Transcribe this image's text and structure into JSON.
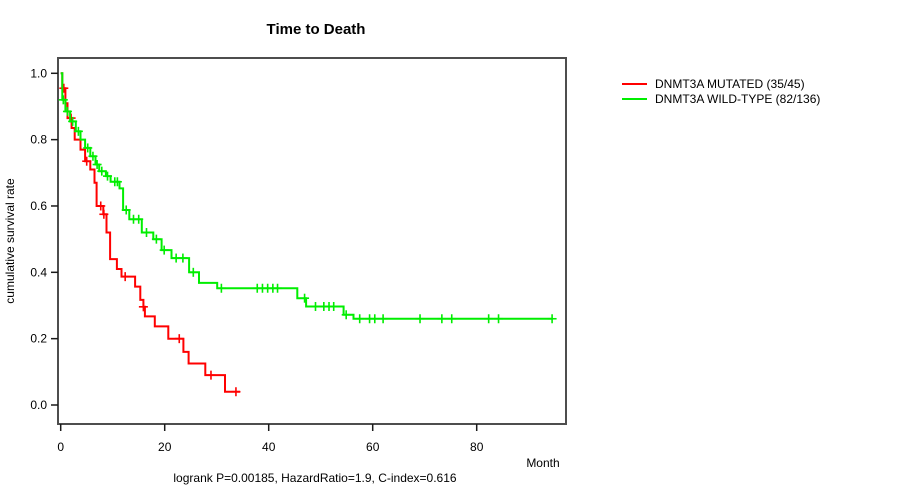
{
  "title": "Time to Death",
  "footer": "logrank P=0.00185, HazardRatio=1.9, C-index=0.616",
  "axes": {
    "x": {
      "label": "Month",
      "ticks": [
        0,
        20,
        40,
        60,
        80
      ],
      "range": [
        0,
        97
      ]
    },
    "y": {
      "label": "cumulative survival rate",
      "ticks": [
        "0.0",
        "0.2",
        "0.4",
        "0.6",
        "0.8",
        "1.0"
      ],
      "range": [
        0,
        1
      ]
    }
  },
  "legend": {
    "items": [
      {
        "label": "DNMT3A MUTATED (35/45)",
        "color": "#ff0000"
      },
      {
        "label": "DNMT3A WILD-TYPE (82/136)",
        "color": "#00ee00"
      }
    ]
  },
  "chart_data": {
    "type": "line",
    "subtype": "kaplan-meier-step-curve",
    "title": "Time to Death",
    "xlabel": "Month",
    "ylabel": "cumulative survival rate",
    "xlim": [
      0,
      97
    ],
    "ylim": [
      0,
      1.0
    ],
    "grid": false,
    "legend_position": "right-outside",
    "annotation": "logrank P=0.00185, HazardRatio=1.9, C-index=0.616",
    "series": [
      {
        "name": "DNMT3A MUTATED (35/45)",
        "color": "#ff0000",
        "end": 34.5,
        "steps": [
          [
            0,
            1.0
          ],
          [
            0.3,
            0.955
          ],
          [
            0.9,
            0.91
          ],
          [
            1.3,
            0.865
          ],
          [
            2.1,
            0.835
          ],
          [
            2.7,
            0.8
          ],
          [
            3.8,
            0.77
          ],
          [
            4.7,
            0.735
          ],
          [
            5.7,
            0.71
          ],
          [
            6.5,
            0.67
          ],
          [
            6.9,
            0.6
          ],
          [
            8.2,
            0.575
          ],
          [
            8.8,
            0.52
          ],
          [
            9.5,
            0.44
          ],
          [
            10.8,
            0.41
          ],
          [
            11.7,
            0.387
          ],
          [
            14.3,
            0.357
          ],
          [
            15.3,
            0.317
          ],
          [
            15.9,
            0.296
          ],
          [
            16.2,
            0.267
          ],
          [
            18.1,
            0.237
          ],
          [
            20.7,
            0.2
          ],
          [
            23.6,
            0.16
          ],
          [
            24.6,
            0.125
          ],
          [
            27.8,
            0.09
          ],
          [
            31.6,
            0.04
          ]
        ],
        "censors": [
          [
            0.6,
            0.955
          ],
          [
            2.0,
            0.865
          ],
          [
            5.0,
            0.735
          ],
          [
            7.7,
            0.6
          ],
          [
            8.3,
            0.575
          ],
          [
            12.4,
            0.387
          ],
          [
            15.9,
            0.296
          ],
          [
            22.8,
            0.2
          ],
          [
            28.9,
            0.09
          ],
          [
            33.7,
            0.04
          ]
        ]
      },
      {
        "name": "DNMT3A WILD-TYPE (82/136)",
        "color": "#00ee00",
        "end": 94.5,
        "steps": [
          [
            0,
            1.0
          ],
          [
            0.3,
            0.92
          ],
          [
            0.9,
            0.885
          ],
          [
            1.8,
            0.855
          ],
          [
            2.9,
            0.825
          ],
          [
            3.8,
            0.8
          ],
          [
            4.7,
            0.775
          ],
          [
            5.7,
            0.75
          ],
          [
            6.7,
            0.725
          ],
          [
            7.4,
            0.705
          ],
          [
            8.7,
            0.69
          ],
          [
            9.6,
            0.673
          ],
          [
            11.3,
            0.653
          ],
          [
            12.0,
            0.588
          ],
          [
            13.2,
            0.56
          ],
          [
            15.6,
            0.52
          ],
          [
            17.8,
            0.5
          ],
          [
            19.4,
            0.467
          ],
          [
            21.3,
            0.443
          ],
          [
            24.7,
            0.4
          ],
          [
            26.6,
            0.368
          ],
          [
            30.1,
            0.352
          ],
          [
            45.5,
            0.322
          ],
          [
            47.2,
            0.297
          ],
          [
            54.4,
            0.272
          ],
          [
            56.3,
            0.26
          ]
        ],
        "censors": [
          [
            0.5,
            0.92
          ],
          [
            1.3,
            0.885
          ],
          [
            2.3,
            0.855
          ],
          [
            3.4,
            0.825
          ],
          [
            5.2,
            0.775
          ],
          [
            6.2,
            0.75
          ],
          [
            7.0,
            0.725
          ],
          [
            7.9,
            0.705
          ],
          [
            9.0,
            0.69
          ],
          [
            10.4,
            0.673
          ],
          [
            10.9,
            0.673
          ],
          [
            12.6,
            0.588
          ],
          [
            14.0,
            0.56
          ],
          [
            15.0,
            0.56
          ],
          [
            16.5,
            0.52
          ],
          [
            18.4,
            0.5
          ],
          [
            19.9,
            0.467
          ],
          [
            22.2,
            0.443
          ],
          [
            23.5,
            0.443
          ],
          [
            25.5,
            0.4
          ],
          [
            30.9,
            0.352
          ],
          [
            37.8,
            0.352
          ],
          [
            38.8,
            0.352
          ],
          [
            39.8,
            0.352
          ],
          [
            40.8,
            0.352
          ],
          [
            41.7,
            0.352
          ],
          [
            46.9,
            0.322
          ],
          [
            49.0,
            0.297
          ],
          [
            50.6,
            0.297
          ],
          [
            51.6,
            0.297
          ],
          [
            52.5,
            0.297
          ],
          [
            54.9,
            0.272
          ],
          [
            57.5,
            0.26
          ],
          [
            59.4,
            0.26
          ],
          [
            60.4,
            0.26
          ],
          [
            62.0,
            0.26
          ],
          [
            69.1,
            0.26
          ],
          [
            73.3,
            0.26
          ],
          [
            75.2,
            0.26
          ],
          [
            82.3,
            0.26
          ],
          [
            84.2,
            0.26
          ],
          [
            94.5,
            0.26
          ]
        ]
      }
    ]
  },
  "style": {
    "box_color": "#4d4d4d",
    "tick_color": "#1a1a1a",
    "text_color": "#000000"
  }
}
